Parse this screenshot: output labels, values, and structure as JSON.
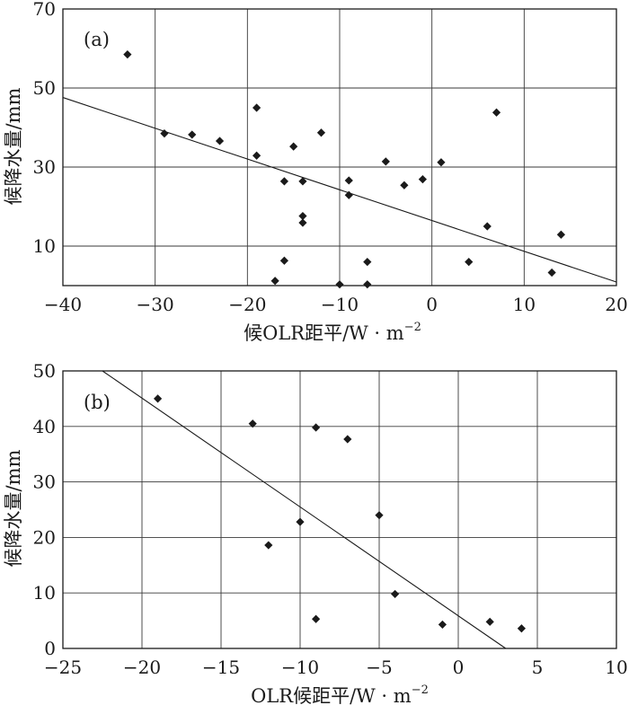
{
  "chart_data": [
    {
      "type": "scatter",
      "panel_label": "(a)",
      "xlabel": "候OLR距平/W · m",
      "xlabel_sup": "−2",
      "ylabel": "候降水量/mm",
      "xlim": [
        -40,
        20
      ],
      "ylim": [
        0,
        70
      ],
      "x_ticks": [
        -40,
        -30,
        -20,
        -10,
        0,
        10,
        20
      ],
      "x_tick_labels": [
        "−40",
        "−30",
        "−20",
        "−10",
        "0",
        "10",
        "20"
      ],
      "y_ticks": [
        10,
        30,
        50,
        70
      ],
      "y_tick_labels": [
        "10",
        "30",
        "50",
        "70"
      ],
      "grid": true,
      "points": [
        [
          -33,
          58.5
        ],
        [
          -29,
          38.5
        ],
        [
          -26,
          38.2
        ],
        [
          -23,
          36.6
        ],
        [
          -19,
          45.0
        ],
        [
          -19,
          32.9
        ],
        [
          -15,
          35.2
        ],
        [
          -12,
          38.7
        ],
        [
          -16,
          26.4
        ],
        [
          -14,
          26.4
        ],
        [
          -14,
          17.6
        ],
        [
          -14,
          15.9
        ],
        [
          -16,
          6.3
        ],
        [
          -17,
          1.2
        ],
        [
          -10,
          0.3
        ],
        [
          -7,
          0.3
        ],
        [
          -7,
          6.0
        ],
        [
          -9,
          26.6
        ],
        [
          -9,
          22.9
        ],
        [
          -5,
          31.4
        ],
        [
          -3,
          25.4
        ],
        [
          -1,
          26.9
        ],
        [
          1,
          31.2
        ],
        [
          4,
          6.0
        ],
        [
          6,
          15.0
        ],
        [
          7,
          43.8
        ],
        [
          13,
          3.3
        ],
        [
          14,
          12.9
        ]
      ],
      "fit_line": [
        [
          -40,
          47.6
        ],
        [
          20,
          0.9
        ]
      ]
    },
    {
      "type": "scatter",
      "panel_label": "(b)",
      "xlabel": "OLR候距平/W · m",
      "xlabel_sup": "−2",
      "ylabel": "候降水量/mm",
      "xlim": [
        -25,
        10
      ],
      "ylim": [
        0,
        50
      ],
      "x_ticks": [
        -25,
        -20,
        -15,
        -10,
        -5,
        0,
        5,
        10
      ],
      "x_tick_labels": [
        "−25",
        "−20",
        "−15",
        "−10",
        "−5",
        "0",
        "5",
        "10"
      ],
      "y_ticks": [
        0,
        10,
        20,
        30,
        40,
        50
      ],
      "y_tick_labels": [
        "0",
        "10",
        "20",
        "30",
        "40",
        "50"
      ],
      "grid": true,
      "points": [
        [
          -19,
          45.0
        ],
        [
          -13,
          40.5
        ],
        [
          -9,
          39.8
        ],
        [
          -7,
          37.7
        ],
        [
          -12,
          18.6
        ],
        [
          -10,
          22.8
        ],
        [
          -5,
          24.0
        ],
        [
          -9,
          5.3
        ],
        [
          -4,
          9.8
        ],
        [
          -1,
          4.3
        ],
        [
          2,
          4.8
        ],
        [
          4,
          3.6
        ]
      ],
      "fit_line": [
        [
          -22.5,
          50.0
        ],
        [
          3.0,
          0.0
        ]
      ]
    }
  ],
  "colors": {
    "ink": "#1a1a1a",
    "grid": "#3a3a3a",
    "background": "#ffffff"
  }
}
